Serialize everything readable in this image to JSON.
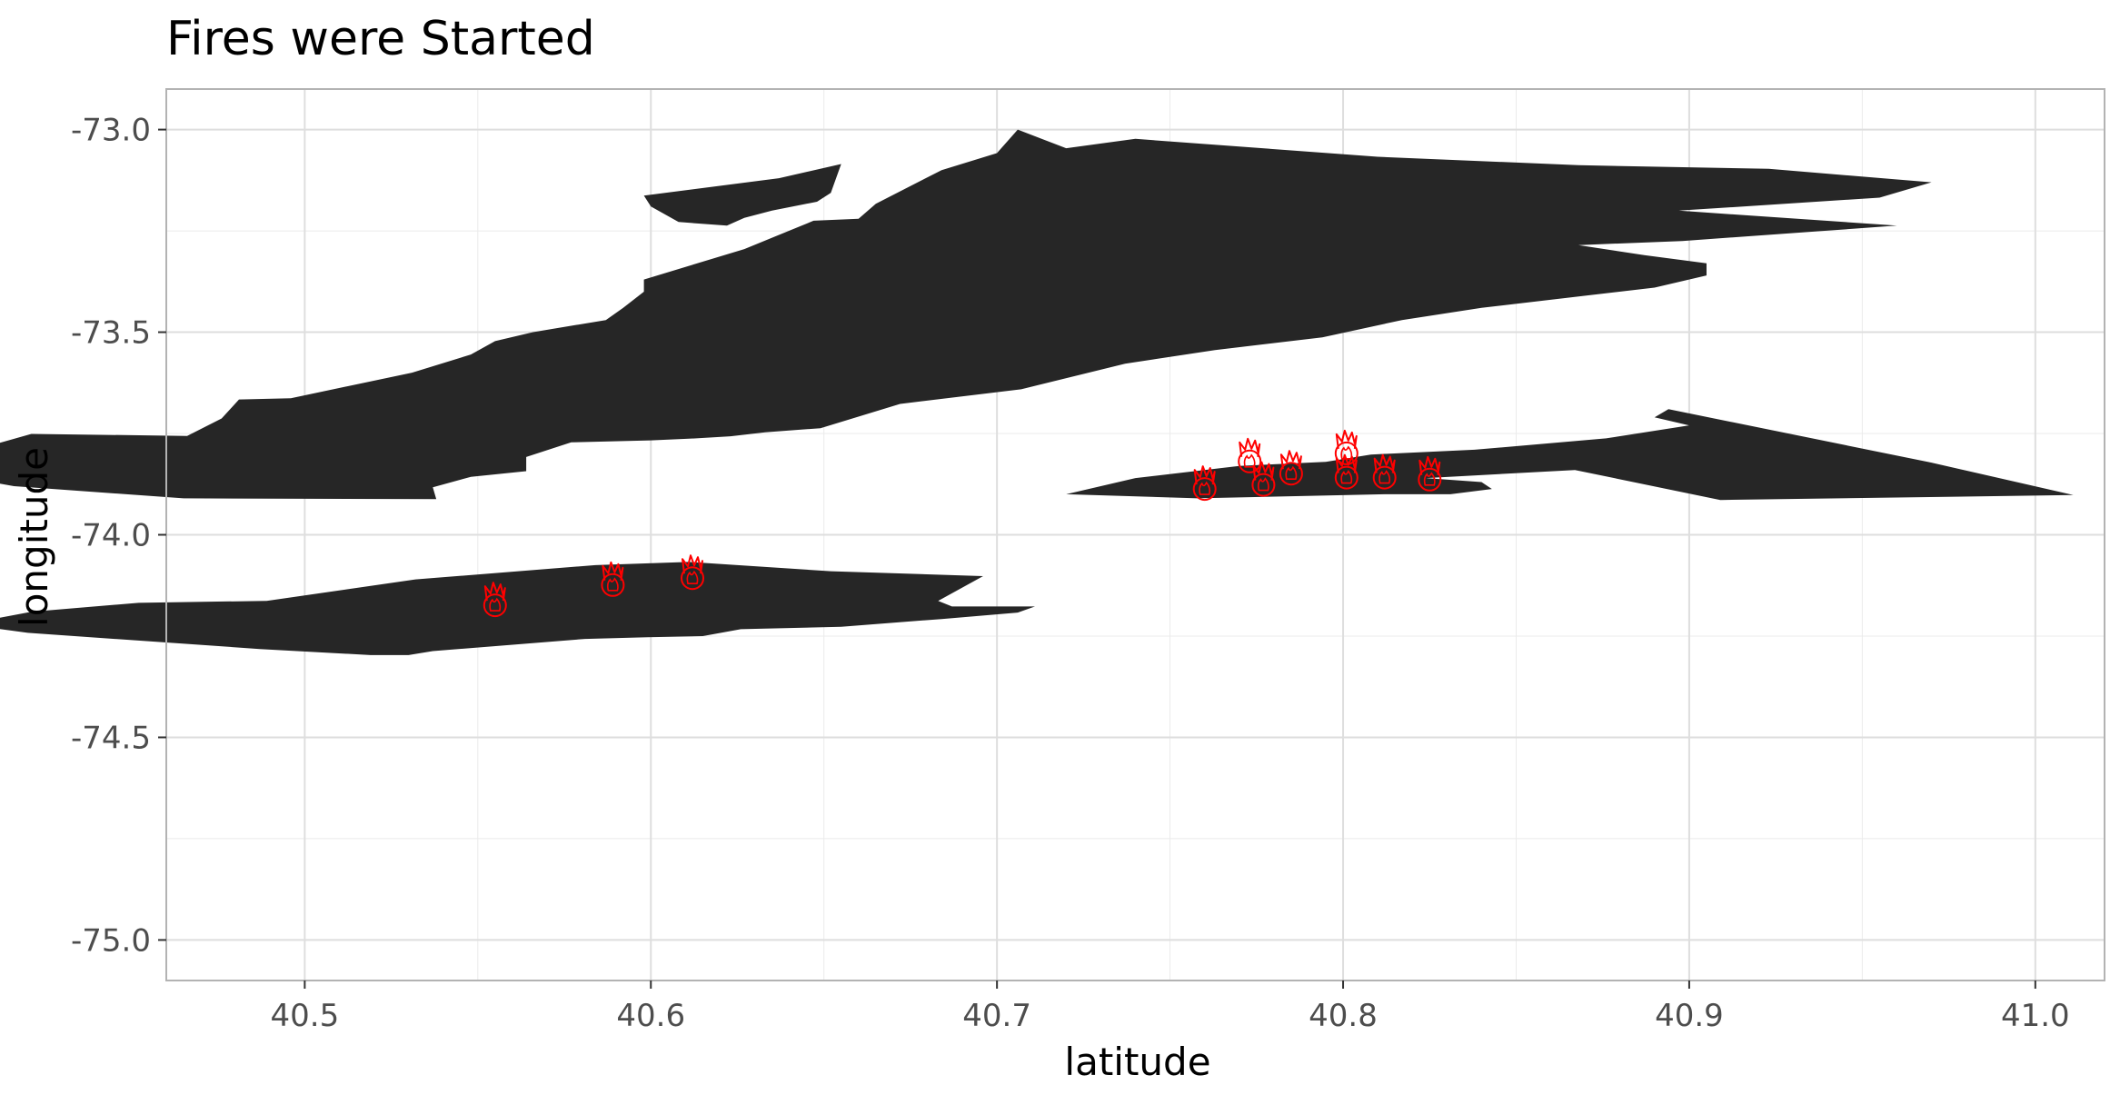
{
  "chart_data": {
    "type": "scatter",
    "title": "Fires were Started",
    "xlabel": "latitude",
    "ylabel": "longitude",
    "xlim": [
      40.46,
      41.02
    ],
    "ylim": [
      -75.1,
      -72.9
    ],
    "x_ticks": [
      40.5,
      40.6,
      40.7,
      40.8,
      40.9,
      41.0
    ],
    "x_tick_labels": [
      "40.5",
      "40.6",
      "40.7",
      "40.8",
      "40.9",
      "41.0"
    ],
    "y_ticks": [
      -73.0,
      -73.5,
      -74.0,
      -74.5,
      -75.0
    ],
    "y_tick_labels": [
      "-73.0",
      "-73.5",
      "-74.0",
      "-74.5",
      "-75.0"
    ],
    "grid": true,
    "legend": "none",
    "background_color": "#ffffff",
    "land_color": "#262626",
    "marker_color": "#ff0000",
    "marker_icon": "fire-icon",
    "regions": [
      {
        "name": "mainland",
        "points": [
          [
            40.537,
            -73.883
          ],
          [
            40.548,
            -73.857
          ],
          [
            40.564,
            -73.843
          ],
          [
            40.564,
            -73.808
          ],
          [
            40.577,
            -73.772
          ],
          [
            40.6,
            -73.767
          ],
          [
            40.611,
            -73.763
          ],
          [
            40.623,
            -73.757
          ],
          [
            40.633,
            -73.747
          ],
          [
            40.649,
            -73.737
          ],
          [
            40.672,
            -73.677
          ],
          [
            40.707,
            -73.641
          ],
          [
            40.737,
            -73.578
          ],
          [
            40.763,
            -73.544
          ],
          [
            40.794,
            -73.513
          ],
          [
            40.817,
            -73.47
          ],
          [
            40.84,
            -73.44
          ],
          [
            40.87,
            -73.41
          ],
          [
            40.89,
            -73.39
          ],
          [
            40.905,
            -73.36
          ],
          [
            40.905,
            -73.33
          ],
          [
            40.887,
            -73.31
          ],
          [
            40.868,
            -73.285
          ],
          [
            40.898,
            -73.275
          ],
          [
            40.96,
            -73.237
          ],
          [
            40.897,
            -73.2
          ],
          [
            40.955,
            -73.168
          ],
          [
            40.97,
            -73.13
          ],
          [
            40.923,
            -73.097
          ],
          [
            40.868,
            -73.088
          ],
          [
            40.81,
            -73.067
          ],
          [
            40.74,
            -73.023
          ],
          [
            40.72,
            -73.046
          ],
          [
            40.706,
            -73.0
          ],
          [
            40.7,
            -73.058
          ],
          [
            40.684,
            -73.1
          ],
          [
            40.665,
            -73.183
          ],
          [
            40.66,
            -73.22
          ],
          [
            40.647,
            -73.225
          ],
          [
            40.627,
            -73.295
          ],
          [
            40.598,
            -73.37
          ],
          [
            40.598,
            -73.4
          ],
          [
            40.592,
            -73.44
          ],
          [
            40.587,
            -73.47
          ],
          [
            40.566,
            -73.5
          ],
          [
            40.555,
            -73.522
          ],
          [
            40.548,
            -73.555
          ],
          [
            40.531,
            -73.6
          ],
          [
            40.496,
            -73.663
          ],
          [
            40.481,
            -73.666
          ],
          [
            40.476,
            -73.713
          ],
          [
            40.466,
            -73.756
          ],
          [
            40.421,
            -73.751
          ],
          [
            40.411,
            -73.775
          ],
          [
            40.405,
            -73.807
          ],
          [
            40.397,
            -73.832
          ],
          [
            40.401,
            -73.857
          ],
          [
            40.416,
            -73.88
          ],
          [
            40.465,
            -73.91
          ],
          [
            40.538,
            -73.912
          ],
          [
            40.537,
            -73.883
          ]
        ]
      },
      {
        "name": "island-north",
        "points": [
          [
            40.622,
            -73.237
          ],
          [
            40.627,
            -73.218
          ],
          [
            40.635,
            -73.2
          ],
          [
            40.648,
            -73.178
          ],
          [
            40.652,
            -73.156
          ],
          [
            40.655,
            -73.085
          ],
          [
            40.637,
            -73.12
          ],
          [
            40.598,
            -73.163
          ],
          [
            40.6,
            -73.19
          ],
          [
            40.608,
            -73.228
          ],
          [
            40.622,
            -73.237
          ]
        ]
      },
      {
        "name": "island-southwest",
        "points": [
          [
            40.487,
            -74.282
          ],
          [
            40.519,
            -74.297
          ],
          [
            40.53,
            -74.297
          ],
          [
            40.537,
            -74.287
          ],
          [
            40.581,
            -74.257
          ],
          [
            40.599,
            -74.253
          ],
          [
            40.615,
            -74.25
          ],
          [
            40.626,
            -74.233
          ],
          [
            40.655,
            -74.227
          ],
          [
            40.684,
            -74.208
          ],
          [
            40.706,
            -74.192
          ],
          [
            40.711,
            -74.177
          ],
          [
            40.687,
            -74.177
          ],
          [
            40.683,
            -74.163
          ],
          [
            40.696,
            -74.102
          ],
          [
            40.652,
            -74.09
          ],
          [
            40.611,
            -74.067
          ],
          [
            40.584,
            -74.075
          ],
          [
            40.532,
            -74.11
          ],
          [
            40.489,
            -74.163
          ],
          [
            40.452,
            -74.168
          ],
          [
            40.421,
            -74.19
          ],
          [
            40.402,
            -74.221
          ],
          [
            40.42,
            -74.242
          ],
          [
            40.487,
            -74.282
          ]
        ]
      },
      {
        "name": "island-southeast",
        "points": [
          [
            40.909,
            -73.914
          ],
          [
            41.011,
            -73.902
          ],
          [
            40.97,
            -73.822
          ],
          [
            40.894,
            -73.69
          ],
          [
            40.89,
            -73.71
          ],
          [
            40.9,
            -73.73
          ],
          [
            40.876,
            -73.762
          ],
          [
            40.838,
            -73.79
          ],
          [
            40.808,
            -73.802
          ],
          [
            40.795,
            -73.82
          ],
          [
            40.77,
            -73.83
          ],
          [
            40.74,
            -73.86
          ],
          [
            40.72,
            -73.9
          ],
          [
            40.758,
            -73.91
          ],
          [
            40.812,
            -73.9
          ],
          [
            40.831,
            -73.9
          ],
          [
            40.843,
            -73.887
          ],
          [
            40.84,
            -73.87
          ],
          [
            40.824,
            -73.86
          ],
          [
            40.867,
            -73.84
          ],
          [
            40.909,
            -73.914
          ]
        ]
      }
    ],
    "points": [
      [
        40.555,
        -74.165
      ],
      [
        40.589,
        -74.115
      ],
      [
        40.612,
        -74.098
      ],
      [
        40.76,
        -73.878
      ],
      [
        40.773,
        -73.81
      ],
      [
        40.777,
        -73.868
      ],
      [
        40.785,
        -73.84
      ],
      [
        40.801,
        -73.79
      ],
      [
        40.801,
        -73.85
      ],
      [
        40.812,
        -73.85
      ],
      [
        40.825,
        -73.855
      ]
    ]
  }
}
